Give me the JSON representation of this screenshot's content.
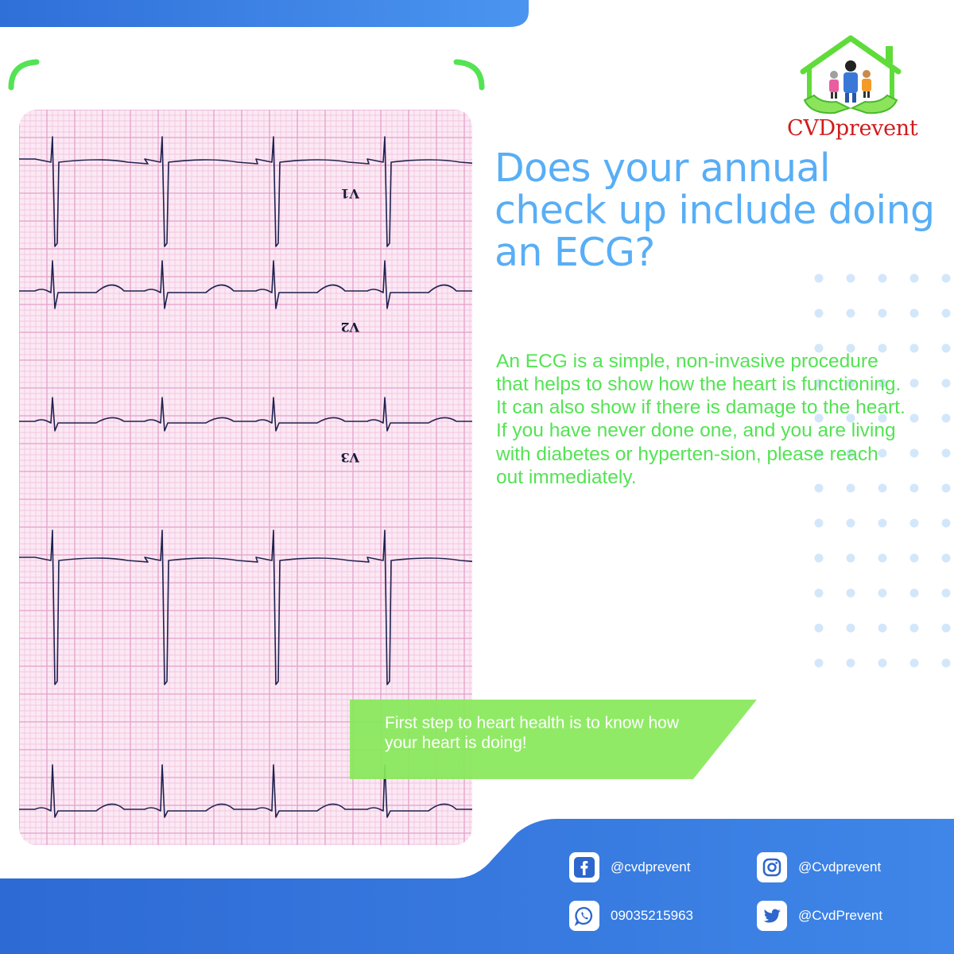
{
  "brand": {
    "name": "CVDprevent"
  },
  "headline": "Does your annual check up include doing an ECG?",
  "body": "An ECG is a simple, non-invasive procedure that helps to show how the heart is functioning. It can also show if there is damage to the heart. If you have never done one, and you are living with diabetes or hyperten-sion, please reach out immediately.",
  "banner": "First step to heart health is to know how your heart is doing!",
  "ecg_leads": [
    "V1",
    "V2",
    "V3"
  ],
  "social": {
    "facebook": "@cvdprevent",
    "instagram": "@Cvdprevent",
    "whatsapp": "09035215963",
    "twitter": "@CvdPrevent"
  },
  "colors": {
    "blue": "#3a7ee0",
    "headline_blue": "#58aef6",
    "green": "#54e354",
    "banner_green": "#88e85a",
    "grid_pink": "#e8a6cf",
    "logo_red": "#d01c1c"
  }
}
